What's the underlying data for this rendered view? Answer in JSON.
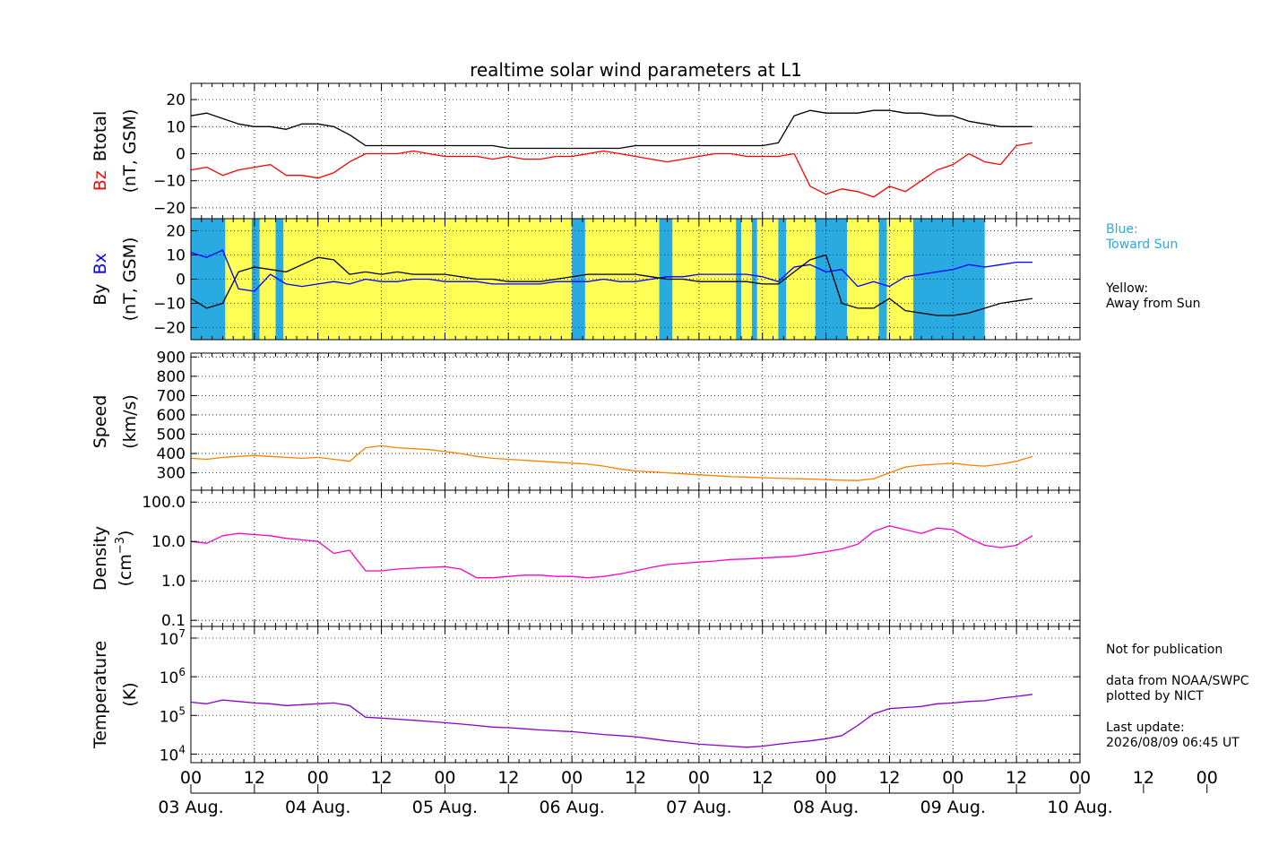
{
  "chart_title": "realtime solar wind parameters at L1",
  "colors": {
    "btotal": "#000000",
    "bz": "#ff0000",
    "bx": "#0000ff",
    "by": "#000000",
    "speed": "#ff8000",
    "density": "#ff00cc",
    "temperature": "#8800cc",
    "toward_sun": "#29abe2",
    "away_from_sun": "#ffff55"
  },
  "legend": {
    "blue_label": "Blue:",
    "blue_text": "Toward Sun",
    "yellow_label": "Yellow:",
    "yellow_text": "Away from Sun"
  },
  "notes": {
    "not_for_publication": "Not for publication",
    "data_from": "data from NOAA/SWPC",
    "plotted_by": "plotted by NICT",
    "last_update_label": "Last update:",
    "last_update_value": "2026/08/09 06:45 UT"
  },
  "chart_data": [
    {
      "type": "line",
      "panel": "magnetic-field-total",
      "ylabel_parts": [
        "Bz",
        "Btotal",
        "(nT, GSM)"
      ],
      "ylim": [
        -24,
        26
      ],
      "yticks": [
        {
          "v": 20,
          "label": "20"
        },
        {
          "v": 10,
          "label": "10"
        },
        {
          "v": 0,
          "label": "0"
        },
        {
          "v": -10,
          "label": "−10"
        },
        {
          "v": -20,
          "label": "−20"
        }
      ],
      "series": [
        {
          "name": "Btotal",
          "x": [
            0,
            3,
            6,
            9,
            12,
            15,
            18,
            21,
            24,
            27,
            30,
            33,
            36,
            39,
            42,
            45,
            48,
            51,
            54,
            57,
            60,
            63,
            66,
            69,
            72,
            75,
            78,
            81,
            84,
            87,
            90,
            93,
            96,
            99,
            102,
            105,
            108,
            111,
            114,
            117,
            120,
            123,
            126,
            129,
            132,
            135,
            138,
            141,
            144,
            147,
            150,
            153,
            156,
            159
          ],
          "y": [
            14,
            15,
            13,
            11,
            10,
            10,
            9,
            11,
            11,
            10,
            7,
            3,
            3,
            3,
            3,
            3,
            3,
            3,
            3,
            3,
            2,
            2,
            2,
            2,
            2,
            2,
            2,
            2,
            3,
            3,
            3,
            3,
            3,
            3,
            3,
            3,
            3,
            4,
            14,
            16,
            15,
            15,
            15,
            16,
            16,
            15,
            15,
            14,
            14,
            12,
            11,
            10,
            10,
            10
          ]
        },
        {
          "name": "Bz",
          "x": [
            0,
            3,
            6,
            9,
            12,
            15,
            18,
            21,
            24,
            27,
            30,
            33,
            36,
            39,
            42,
            45,
            48,
            51,
            54,
            57,
            60,
            63,
            66,
            69,
            72,
            75,
            78,
            81,
            84,
            87,
            90,
            93,
            96,
            99,
            102,
            105,
            108,
            111,
            114,
            117,
            120,
            123,
            126,
            129,
            132,
            135,
            138,
            141,
            144,
            147,
            150,
            153,
            156,
            159
          ],
          "y": [
            -6,
            -5,
            -8,
            -6,
            -5,
            -4,
            -8,
            -8,
            -9,
            -7,
            -3,
            0,
            0,
            0,
            1,
            0,
            -1,
            -1,
            -1,
            -2,
            -1,
            -2,
            -2,
            -1,
            -1,
            0,
            1,
            0,
            -1,
            -2,
            -3,
            -2,
            -1,
            0,
            0,
            -1,
            -1,
            -1,
            0,
            -12,
            -15,
            -13,
            -14,
            -16,
            -12,
            -14,
            -10,
            -6,
            -4,
            0,
            -3,
            -4,
            3,
            4
          ]
        }
      ]
    },
    {
      "type": "line",
      "panel": "magnetic-field-components",
      "ylabel_parts": [
        "By",
        "Bx",
        "(nT, GSM)"
      ],
      "ylim": [
        -25,
        25
      ],
      "yticks": [
        {
          "v": 20,
          "label": "20"
        },
        {
          "v": 10,
          "label": "10"
        },
        {
          "v": 0,
          "label": "0"
        },
        {
          "v": -10,
          "label": "−10"
        },
        {
          "v": -20,
          "label": "−20"
        }
      ],
      "sector_intervals": [
        {
          "start": 0,
          "end": 6.5,
          "sector": "toward"
        },
        {
          "start": 6.5,
          "end": 11.5,
          "sector": "away"
        },
        {
          "start": 11.5,
          "end": 13,
          "sector": "toward"
        },
        {
          "start": 13,
          "end": 16,
          "sector": "away"
        },
        {
          "start": 16,
          "end": 17.5,
          "sector": "toward"
        },
        {
          "start": 17.5,
          "end": 72,
          "sector": "away"
        },
        {
          "start": 72,
          "end": 74.5,
          "sector": "toward"
        },
        {
          "start": 74.5,
          "end": 88.5,
          "sector": "away"
        },
        {
          "start": 88.5,
          "end": 91,
          "sector": "toward"
        },
        {
          "start": 91,
          "end": 103,
          "sector": "away"
        },
        {
          "start": 103,
          "end": 104,
          "sector": "toward"
        },
        {
          "start": 104,
          "end": 106,
          "sector": "away"
        },
        {
          "start": 106,
          "end": 107,
          "sector": "toward"
        },
        {
          "start": 107,
          "end": 111,
          "sector": "away"
        },
        {
          "start": 111,
          "end": 112.5,
          "sector": "toward"
        },
        {
          "start": 112.5,
          "end": 118,
          "sector": "away"
        },
        {
          "start": 118,
          "end": 124,
          "sector": "toward"
        },
        {
          "start": 124,
          "end": 130,
          "sector": "away"
        },
        {
          "start": 130,
          "end": 131.5,
          "sector": "toward"
        },
        {
          "start": 131.5,
          "end": 136.5,
          "sector": "away"
        },
        {
          "start": 136.5,
          "end": 150,
          "sector": "toward"
        }
      ],
      "series": [
        {
          "name": "Bx",
          "x": [
            0,
            3,
            6,
            9,
            12,
            15,
            18,
            21,
            24,
            27,
            30,
            33,
            36,
            39,
            42,
            45,
            48,
            51,
            54,
            57,
            60,
            63,
            66,
            69,
            72,
            75,
            78,
            81,
            84,
            87,
            90,
            93,
            96,
            99,
            102,
            105,
            108,
            111,
            114,
            117,
            120,
            123,
            126,
            129,
            132,
            135,
            138,
            141,
            144,
            147,
            150,
            153,
            156,
            159
          ],
          "y": [
            11,
            9,
            12,
            -4,
            -5,
            2,
            -2,
            -3,
            -2,
            -1,
            -2,
            0,
            -1,
            -1,
            0,
            0,
            -1,
            -1,
            -1,
            -2,
            -2,
            -2,
            -2,
            -1,
            -1,
            -1,
            0,
            -1,
            -1,
            0,
            1,
            1,
            2,
            2,
            2,
            2,
            1,
            -1,
            5,
            6,
            3,
            4,
            -3,
            -1,
            -3,
            1,
            2,
            3,
            4,
            6,
            5,
            6,
            7,
            7
          ]
        },
        {
          "name": "By",
          "x": [
            0,
            3,
            6,
            9,
            12,
            15,
            18,
            21,
            24,
            27,
            30,
            33,
            36,
            39,
            42,
            45,
            48,
            51,
            54,
            57,
            60,
            63,
            66,
            69,
            72,
            75,
            78,
            81,
            84,
            87,
            90,
            93,
            96,
            99,
            102,
            105,
            108,
            111,
            114,
            117,
            120,
            123,
            126,
            129,
            132,
            135,
            138,
            141,
            144,
            147,
            150,
            153,
            156,
            159
          ],
          "y": [
            -8,
            -12,
            -10,
            3,
            5,
            4,
            3,
            6,
            9,
            8,
            2,
            3,
            2,
            3,
            2,
            2,
            2,
            1,
            0,
            0,
            -1,
            -1,
            -1,
            0,
            1,
            2,
            2,
            2,
            2,
            1,
            0,
            0,
            -1,
            -1,
            -1,
            -1,
            -2,
            -2,
            3,
            8,
            10,
            -10,
            -12,
            -12,
            -8,
            -13,
            -14,
            -15,
            -15,
            -14,
            -12,
            -10,
            -9,
            -8
          ]
        }
      ]
    },
    {
      "type": "line",
      "panel": "solar-wind-speed",
      "ylabel_parts": [
        "Speed",
        "(km/s)"
      ],
      "ylim": [
        210,
        920
      ],
      "yticks": [
        {
          "v": 900,
          "label": "900"
        },
        {
          "v": 800,
          "label": "800"
        },
        {
          "v": 700,
          "label": "700"
        },
        {
          "v": 600,
          "label": "600"
        },
        {
          "v": 500,
          "label": "500"
        },
        {
          "v": 400,
          "label": "400"
        },
        {
          "v": 300,
          "label": "300"
        }
      ],
      "series": [
        {
          "name": "Speed",
          "x": [
            0,
            3,
            6,
            9,
            12,
            15,
            18,
            21,
            24,
            27,
            30,
            33,
            36,
            39,
            42,
            45,
            48,
            51,
            54,
            57,
            60,
            63,
            66,
            69,
            72,
            75,
            78,
            81,
            84,
            87,
            90,
            93,
            96,
            99,
            102,
            105,
            108,
            111,
            114,
            117,
            120,
            123,
            126,
            129,
            132,
            135,
            138,
            141,
            144,
            147,
            150,
            153,
            156,
            159
          ],
          "y": [
            375,
            370,
            380,
            385,
            390,
            385,
            380,
            375,
            380,
            370,
            360,
            430,
            440,
            430,
            425,
            420,
            410,
            400,
            385,
            375,
            370,
            365,
            360,
            355,
            350,
            345,
            335,
            320,
            310,
            305,
            300,
            295,
            290,
            285,
            280,
            278,
            275,
            272,
            270,
            268,
            265,
            262,
            260,
            270,
            300,
            330,
            340,
            345,
            350,
            340,
            335,
            345,
            360,
            385
          ]
        }
      ]
    },
    {
      "type": "line",
      "panel": "proton-density",
      "yscale": "log",
      "ylabel_parts": [
        "Density",
        "(cm",
        "−3",
        ")"
      ],
      "ylim": [
        0.07,
        200
      ],
      "yticks": [
        {
          "v": 100,
          "label": "100.0"
        },
        {
          "v": 10,
          "label": "10.0"
        },
        {
          "v": 1,
          "label": "1.0"
        },
        {
          "v": 0.1,
          "label": "0.1"
        }
      ],
      "series": [
        {
          "name": "Density",
          "x": [
            0,
            3,
            6,
            9,
            12,
            15,
            18,
            21,
            24,
            27,
            30,
            33,
            36,
            39,
            42,
            45,
            48,
            51,
            54,
            57,
            60,
            63,
            66,
            69,
            72,
            75,
            78,
            81,
            84,
            87,
            90,
            93,
            96,
            99,
            102,
            105,
            108,
            111,
            114,
            117,
            120,
            123,
            126,
            129,
            132,
            135,
            138,
            141,
            144,
            147,
            150,
            153,
            156,
            159
          ],
          "y": [
            10,
            9,
            14,
            16,
            15,
            14,
            12,
            11,
            10,
            5,
            6,
            1.8,
            1.8,
            2.0,
            2.1,
            2.2,
            2.3,
            2.0,
            1.2,
            1.2,
            1.3,
            1.4,
            1.4,
            1.3,
            1.3,
            1.2,
            1.3,
            1.5,
            1.8,
            2.2,
            2.6,
            2.8,
            3.0,
            3.2,
            3.5,
            3.6,
            3.8,
            4.0,
            4.2,
            4.8,
            5.5,
            6.5,
            8.5,
            18,
            25,
            20,
            16,
            22,
            20,
            12,
            8,
            7,
            8,
            14
          ]
        }
      ]
    },
    {
      "type": "line",
      "panel": "proton-temperature",
      "yscale": "log",
      "ylabel_parts": [
        "Temperature",
        "(K)"
      ],
      "ylim": [
        6000,
        20000000
      ],
      "yticks": [
        {
          "v": 10000000,
          "base": "10",
          "exp": "7"
        },
        {
          "v": 1000000,
          "base": "10",
          "exp": "6"
        },
        {
          "v": 100000,
          "base": "10",
          "exp": "5"
        },
        {
          "v": 10000,
          "base": "10",
          "exp": "4"
        }
      ],
      "series": [
        {
          "name": "Temperature",
          "x": [
            0,
            3,
            6,
            9,
            12,
            15,
            18,
            21,
            24,
            27,
            30,
            33,
            36,
            39,
            42,
            45,
            48,
            51,
            54,
            57,
            60,
            63,
            66,
            69,
            72,
            75,
            78,
            81,
            84,
            87,
            90,
            93,
            96,
            99,
            102,
            105,
            108,
            111,
            114,
            117,
            120,
            123,
            126,
            129,
            132,
            135,
            138,
            141,
            144,
            147,
            150,
            153,
            156,
            159
          ],
          "y": [
            220000,
            200000,
            250000,
            230000,
            210000,
            200000,
            180000,
            190000,
            200000,
            210000,
            180000,
            90000,
            85000,
            80000,
            75000,
            70000,
            65000,
            60000,
            55000,
            50000,
            48000,
            45000,
            42000,
            40000,
            38000,
            35000,
            32000,
            30000,
            28000,
            25000,
            22000,
            20000,
            18000,
            17000,
            16000,
            15000,
            16000,
            18000,
            20000,
            22000,
            25000,
            30000,
            55000,
            110000,
            150000,
            160000,
            170000,
            200000,
            210000,
            230000,
            240000,
            280000,
            310000,
            350000
          ]
        }
      ]
    }
  ],
  "time_axis": {
    "hour_labels": [
      "00",
      "12",
      "00",
      "12",
      "00",
      "12",
      "00",
      "12",
      "00",
      "12",
      "00",
      "12",
      "00",
      "12",
      "00",
      "12",
      "00"
    ],
    "day_labels": [
      "03 Aug.",
      "04 Aug.",
      "05 Aug.",
      "06 Aug.",
      "07 Aug.",
      "08 Aug.",
      "09 Aug.",
      "10 Aug."
    ]
  }
}
